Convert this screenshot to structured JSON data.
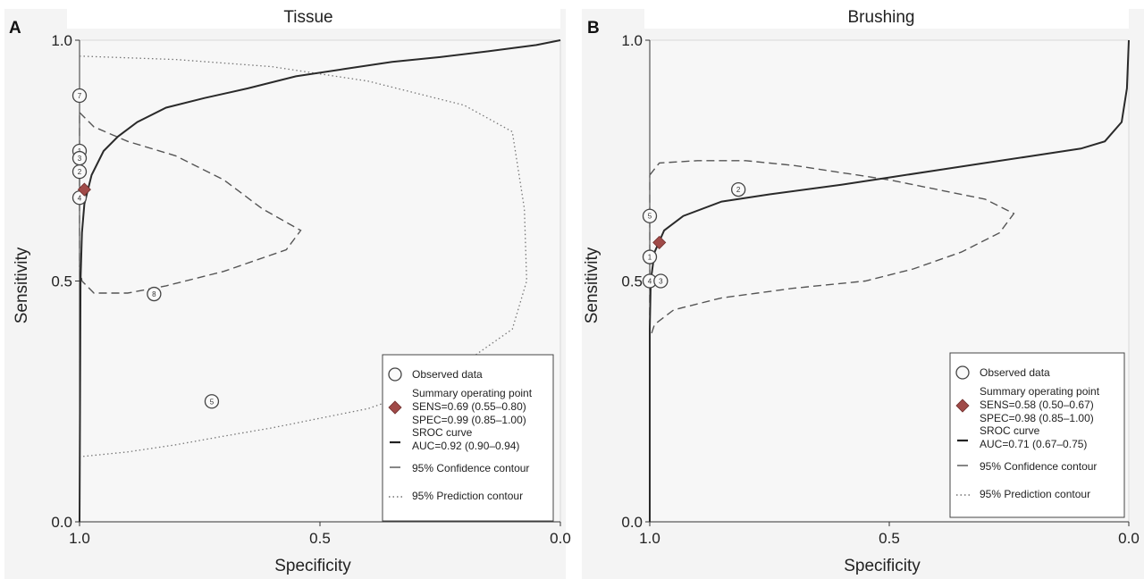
{
  "chart_data": [
    {
      "type": "sroc",
      "panel_label": "A",
      "title": "Tissue",
      "xlabel": "Specificity",
      "ylabel": "Sensitivity",
      "x_axis_reversed": true,
      "xlim": [
        1.0,
        0.0
      ],
      "ylim": [
        0.0,
        1.0
      ],
      "xticks": [
        {
          "value": 1.0,
          "label": "1.0"
        },
        {
          "value": 0.5,
          "label": "0.5"
        },
        {
          "value": 0.0,
          "label": "0.0"
        }
      ],
      "yticks": [
        {
          "value": 0.0,
          "label": "0.0"
        },
        {
          "value": 0.5,
          "label": "0.5"
        },
        {
          "value": 1.0,
          "label": "1.0"
        }
      ],
      "observed": [
        {
          "id": "7",
          "spec": 1.0,
          "sens": 0.885
        },
        {
          "id": "1",
          "spec": 1.0,
          "sens": 0.77
        },
        {
          "id": "3",
          "spec": 1.0,
          "sens": 0.755
        },
        {
          "id": "2",
          "spec": 1.0,
          "sens": 0.727
        },
        {
          "id": "4",
          "spec": 1.0,
          "sens": 0.673
        },
        {
          "id": "8",
          "spec": 0.845,
          "sens": 0.473
        },
        {
          "id": "5",
          "spec": 0.725,
          "sens": 0.25
        }
      ],
      "summary_point": {
        "spec": 0.99,
        "sens": 0.69
      },
      "sroc_curve": [
        [
          1.0,
          0.0
        ],
        [
          0.998,
          0.5
        ],
        [
          0.995,
          0.6
        ],
        [
          0.99,
          0.66
        ],
        [
          0.975,
          0.72
        ],
        [
          0.95,
          0.77
        ],
        [
          0.92,
          0.8
        ],
        [
          0.88,
          0.83
        ],
        [
          0.82,
          0.86
        ],
        [
          0.74,
          0.88
        ],
        [
          0.65,
          0.9
        ],
        [
          0.55,
          0.925
        ],
        [
          0.45,
          0.94
        ],
        [
          0.35,
          0.955
        ],
        [
          0.25,
          0.965
        ],
        [
          0.15,
          0.977
        ],
        [
          0.05,
          0.99
        ],
        [
          0.0,
          1.0
        ]
      ],
      "confidence_contour": [
        [
          1.0,
          0.85
        ],
        [
          0.97,
          0.82
        ],
        [
          0.9,
          0.79
        ],
        [
          0.8,
          0.76
        ],
        [
          0.7,
          0.71
        ],
        [
          0.62,
          0.65
        ],
        [
          0.54,
          0.605
        ],
        [
          0.57,
          0.565
        ],
        [
          0.7,
          0.52
        ],
        [
          0.82,
          0.49
        ],
        [
          0.9,
          0.475
        ],
        [
          0.97,
          0.475
        ],
        [
          0.995,
          0.5
        ],
        [
          1.0,
          0.53
        ],
        [
          1.0,
          0.85
        ]
      ],
      "prediction_contour": [
        [
          1.0,
          0.967
        ],
        [
          0.8,
          0.96
        ],
        [
          0.6,
          0.945
        ],
        [
          0.4,
          0.915
        ],
        [
          0.2,
          0.865
        ],
        [
          0.1,
          0.81
        ],
        [
          0.075,
          0.65
        ],
        [
          0.07,
          0.5
        ],
        [
          0.1,
          0.4
        ],
        [
          0.2,
          0.33
        ],
        [
          0.3,
          0.27
        ],
        [
          0.4,
          0.235
        ],
        [
          0.5,
          0.215
        ],
        [
          0.6,
          0.195
        ],
        [
          0.7,
          0.178
        ],
        [
          0.8,
          0.16
        ],
        [
          0.9,
          0.145
        ],
        [
          1.0,
          0.135
        ]
      ],
      "legend": {
        "observed": "Observed data",
        "summary_title": "Summary operating point",
        "sens": "SENS=0.69 (0.55–0.80)",
        "spec": "SPEC=0.99 (0.85–1.00)",
        "sroc_title": "SROC curve",
        "auc": "AUC=0.92 (0.90–0.94)",
        "confidence": "95% Confidence contour",
        "prediction": "95% Prediction contour",
        "placement": "bottom-right"
      }
    },
    {
      "type": "sroc",
      "panel_label": "B",
      "title": "Brushing",
      "xlabel": "Specificity",
      "ylabel": "Sensitivity",
      "x_axis_reversed": true,
      "xlim": [
        1.0,
        0.0
      ],
      "ylim": [
        0.0,
        1.0
      ],
      "xticks": [
        {
          "value": 1.0,
          "label": "1.0"
        },
        {
          "value": 0.5,
          "label": "0.5"
        },
        {
          "value": 0.0,
          "label": "0.0"
        }
      ],
      "yticks": [
        {
          "value": 0.0,
          "label": "0.0"
        },
        {
          "value": 0.5,
          "label": "0.5"
        },
        {
          "value": 1.0,
          "label": "1.0"
        }
      ],
      "observed": [
        {
          "id": "2",
          "spec": 0.815,
          "sens": 0.69
        },
        {
          "id": "5",
          "spec": 1.0,
          "sens": 0.635
        },
        {
          "id": "1",
          "spec": 1.0,
          "sens": 0.55
        },
        {
          "id": "4",
          "spec": 1.0,
          "sens": 0.5
        },
        {
          "id": "3",
          "spec": 0.977,
          "sens": 0.5
        }
      ],
      "summary_point": {
        "spec": 0.98,
        "sens": 0.58
      },
      "sroc_curve": [
        [
          1.0,
          0.0
        ],
        [
          1.0,
          0.4
        ],
        [
          0.998,
          0.5
        ],
        [
          0.99,
          0.56
        ],
        [
          0.97,
          0.605
        ],
        [
          0.93,
          0.635
        ],
        [
          0.85,
          0.665
        ],
        [
          0.75,
          0.68
        ],
        [
          0.6,
          0.7
        ],
        [
          0.5,
          0.715
        ],
        [
          0.4,
          0.73
        ],
        [
          0.3,
          0.745
        ],
        [
          0.2,
          0.76
        ],
        [
          0.1,
          0.775
        ],
        [
          0.05,
          0.79
        ],
        [
          0.015,
          0.83
        ],
        [
          0.004,
          0.9
        ],
        [
          0.0,
          1.0
        ]
      ],
      "confidence_contour": [
        [
          1.0,
          0.72
        ],
        [
          0.98,
          0.745
        ],
        [
          0.9,
          0.75
        ],
        [
          0.8,
          0.75
        ],
        [
          0.7,
          0.74
        ],
        [
          0.6,
          0.725
        ],
        [
          0.5,
          0.71
        ],
        [
          0.4,
          0.69
        ],
        [
          0.3,
          0.67
        ],
        [
          0.24,
          0.64
        ],
        [
          0.27,
          0.6
        ],
        [
          0.35,
          0.56
        ],
        [
          0.45,
          0.525
        ],
        [
          0.55,
          0.5
        ],
        [
          0.7,
          0.485
        ],
        [
          0.85,
          0.465
        ],
        [
          0.95,
          0.44
        ],
        [
          0.99,
          0.41
        ],
        [
          1.0,
          0.38
        ],
        [
          1.0,
          0.72
        ]
      ],
      "legend": {
        "observed": "Observed data",
        "summary_title": "Summary operating point",
        "sens": "SENS=0.58 (0.50–0.67)",
        "spec": "SPEC=0.98 (0.85–1.00)",
        "sroc_title": "SROC curve",
        "auc": "AUC=0.71 (0.67–0.75)",
        "confidence": "95% Confidence contour",
        "prediction": "95% Prediction contour",
        "placement": "bottom-right"
      }
    }
  ]
}
